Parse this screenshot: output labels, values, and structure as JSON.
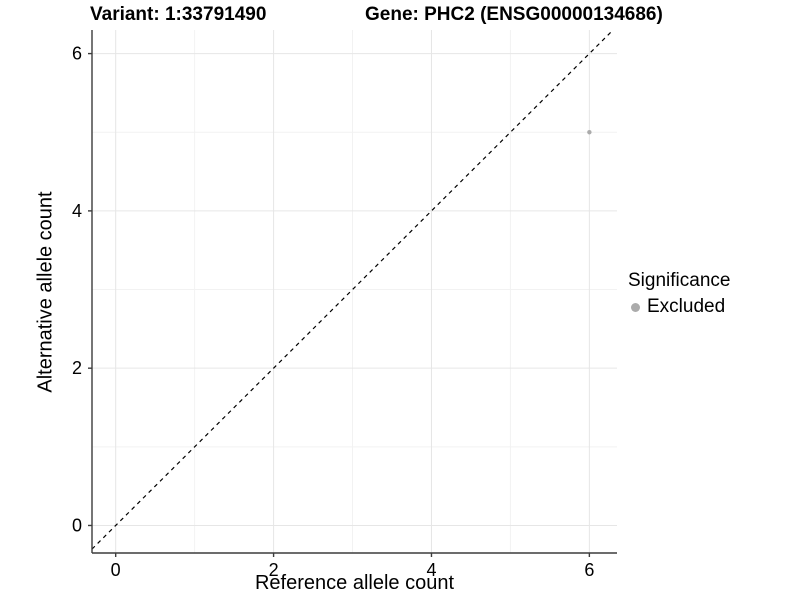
{
  "chart_data": {
    "type": "scatter",
    "title_left": "Variant: 1:33791490",
    "title_right": "Gene: PHC2 (ENSG00000134686)",
    "xlabel": "Reference allele count",
    "ylabel": "Alternative allele count",
    "xlim": [
      -0.3,
      6.35
    ],
    "ylim": [
      -0.35,
      6.3
    ],
    "x_ticks": [
      0,
      2,
      4,
      6
    ],
    "y_ticks": [
      0,
      2,
      4,
      6
    ],
    "x_minor": [
      1,
      3,
      5
    ],
    "y_minor": [
      1,
      3,
      5
    ],
    "grid": "major+minor",
    "reference_line": {
      "kind": "identity y=x",
      "style": "dashed",
      "color": "#000000"
    },
    "series": [
      {
        "name": "Excluded",
        "color": "#ababab",
        "points": [
          [
            6,
            5
          ]
        ]
      }
    ],
    "legend": {
      "title": "Significance",
      "position": "right",
      "entries": [
        {
          "label": "Excluded",
          "color": "#ababab"
        }
      ]
    }
  },
  "colors": {
    "background": "#ffffff",
    "grid_major": "#e6e6e6",
    "grid_minor": "#f2f2f2",
    "axis": "#3c3c3c",
    "text": "#000000"
  }
}
